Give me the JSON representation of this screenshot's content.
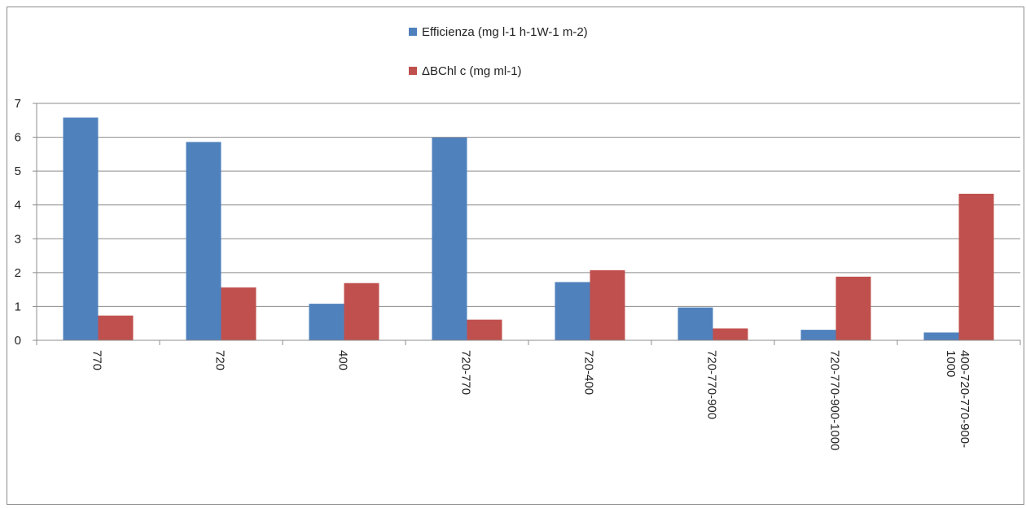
{
  "chart_data": {
    "type": "bar",
    "title": "",
    "xlabel": "",
    "ylabel": "",
    "ylim": [
      0,
      7
    ],
    "y_ticks": [
      "0",
      "1",
      "2",
      "3",
      "4",
      "5",
      "6",
      "7"
    ],
    "grid": true,
    "legend_position": "top-center",
    "categories": [
      "770",
      "720",
      "400",
      "720-770",
      "720-400",
      "720-770-900",
      "720-770-900-1000",
      "400-720-770-900-1000"
    ],
    "category_lines": [
      [
        "770"
      ],
      [
        "720"
      ],
      [
        "400"
      ],
      [
        "720-770"
      ],
      [
        "720-400"
      ],
      [
        "720-770-900"
      ],
      [
        "720-770-900-1000"
      ],
      [
        "400-720-770-900-",
        "1000"
      ]
    ],
    "series": [
      {
        "name": "Efficienza (mg l-1 h-1W-1 m-2)",
        "color": "#4f81bd",
        "values": [
          6.58,
          5.86,
          1.08,
          5.99,
          1.72,
          0.97,
          0.31,
          0.23
        ]
      },
      {
        "name": "ΔBChl c (mg ml-1)",
        "color": "#c0504d",
        "values": [
          0.73,
          1.56,
          1.69,
          0.61,
          2.07,
          0.35,
          1.88,
          4.33
        ]
      }
    ]
  }
}
